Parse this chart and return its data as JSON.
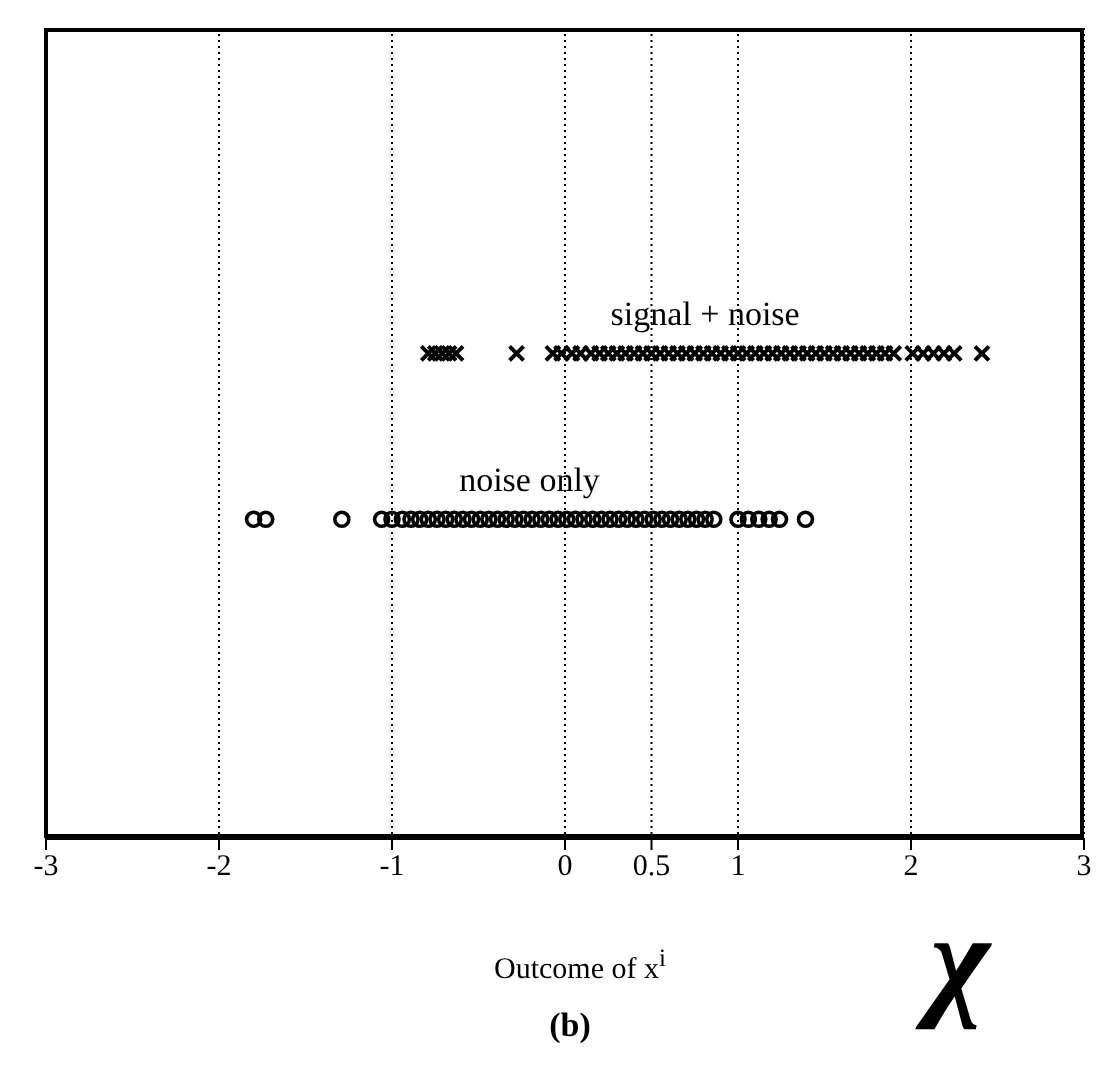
{
  "chart_data": {
    "type": "scatter",
    "orientation": "horizontal",
    "xlabel": "Outcome of x$^{i}$",
    "annotations": [
      "(b)",
      "χ"
    ],
    "xlim": [
      -3,
      3
    ],
    "xticks": [
      -3,
      -2,
      -1,
      0,
      0.5,
      1,
      2,
      3
    ],
    "grid": "x",
    "categories": [
      "signal + noise",
      "noise only"
    ],
    "series": [
      {
        "color": "#000000",
        "marker": "cross",
        "values": [
          -0.79,
          -0.75,
          -0.71,
          -0.67,
          -0.63,
          -0.28,
          -0.07,
          -0.02,
          0.04,
          0.09,
          0.15,
          0.2,
          0.25,
          0.3,
          0.35,
          0.4,
          0.45,
          0.5,
          0.55,
          0.6,
          0.65,
          0.7,
          0.75,
          0.8,
          0.85,
          0.9,
          0.95,
          1.0,
          1.05,
          1.1,
          1.15,
          1.2,
          1.25,
          1.3,
          1.35,
          1.4,
          1.45,
          1.5,
          1.55,
          1.6,
          1.65,
          1.7,
          1.75,
          1.8,
          1.85,
          1.9,
          2.01,
          2.07,
          2.13,
          2.19,
          2.25,
          2.41
        ],
        "x": [
          "signal + noise",
          "signal + noise",
          "signal + noise",
          "signal + noise",
          "signal + noise",
          "signal + noise",
          "signal + noise",
          "signal + noise",
          "signal + noise",
          "signal + noise",
          "signal + noise",
          "signal + noise",
          "signal + noise",
          "signal + noise",
          "signal + noise",
          "signal + noise",
          "signal + noise",
          "signal + noise",
          "signal + noise",
          "signal + noise",
          "signal + noise",
          "signal + noise",
          "signal + noise",
          "signal + noise",
          "signal + noise",
          "signal + noise",
          "signal + noise",
          "signal + noise",
          "signal + noise",
          "signal + noise",
          "signal + noise",
          "signal + noise",
          "signal + noise",
          "signal + noise",
          "signal + noise",
          "signal + noise",
          "signal + noise",
          "signal + noise",
          "signal + noise",
          "signal + noise",
          "signal + noise",
          "signal + noise",
          "signal + noise",
          "signal + noise",
          "signal + noise",
          "signal + noise",
          "signal + noise",
          "signal + noise",
          "signal + noise",
          "signal + noise",
          "signal + noise",
          "signal + noise"
        ]
      },
      {
        "color": "#000000",
        "marker": "circle",
        "values": [
          -1.8,
          -1.73,
          -1.29,
          -1.06,
          -1.0,
          -0.94,
          -0.89,
          -0.84,
          -0.79,
          -0.74,
          -0.69,
          -0.64,
          -0.59,
          -0.54,
          -0.49,
          -0.44,
          -0.39,
          -0.34,
          -0.29,
          -0.24,
          -0.19,
          -0.14,
          -0.09,
          -0.04,
          0.01,
          0.06,
          0.11,
          0.16,
          0.21,
          0.26,
          0.31,
          0.36,
          0.41,
          0.46,
          0.51,
          0.56,
          0.61,
          0.66,
          0.71,
          0.76,
          0.81,
          0.86,
          1.0,
          1.06,
          1.12,
          1.18,
          1.24,
          1.39
        ],
        "x": [
          "noise only",
          "noise only",
          "noise only",
          "noise only",
          "noise only",
          "noise only",
          "noise only",
          "noise only",
          "noise only",
          "noise only",
          "noise only",
          "noise only",
          "noise only",
          "noise only",
          "noise only",
          "noise only",
          "noise only",
          "noise only",
          "noise only",
          "noise only",
          "noise only",
          "noise only",
          "noise only",
          "noise only",
          "noise only",
          "noise only",
          "noise only",
          "noise only",
          "noise only",
          "noise only",
          "noise only",
          "noise only",
          "noise only",
          "noise only",
          "noise only",
          "noise only",
          "noise only",
          "noise only",
          "noise only",
          "noise only",
          "noise only",
          "noise only",
          "noise only",
          "noise only",
          "noise only",
          "noise only",
          "noise only",
          "noise only"
        ]
      }
    ]
  }
}
